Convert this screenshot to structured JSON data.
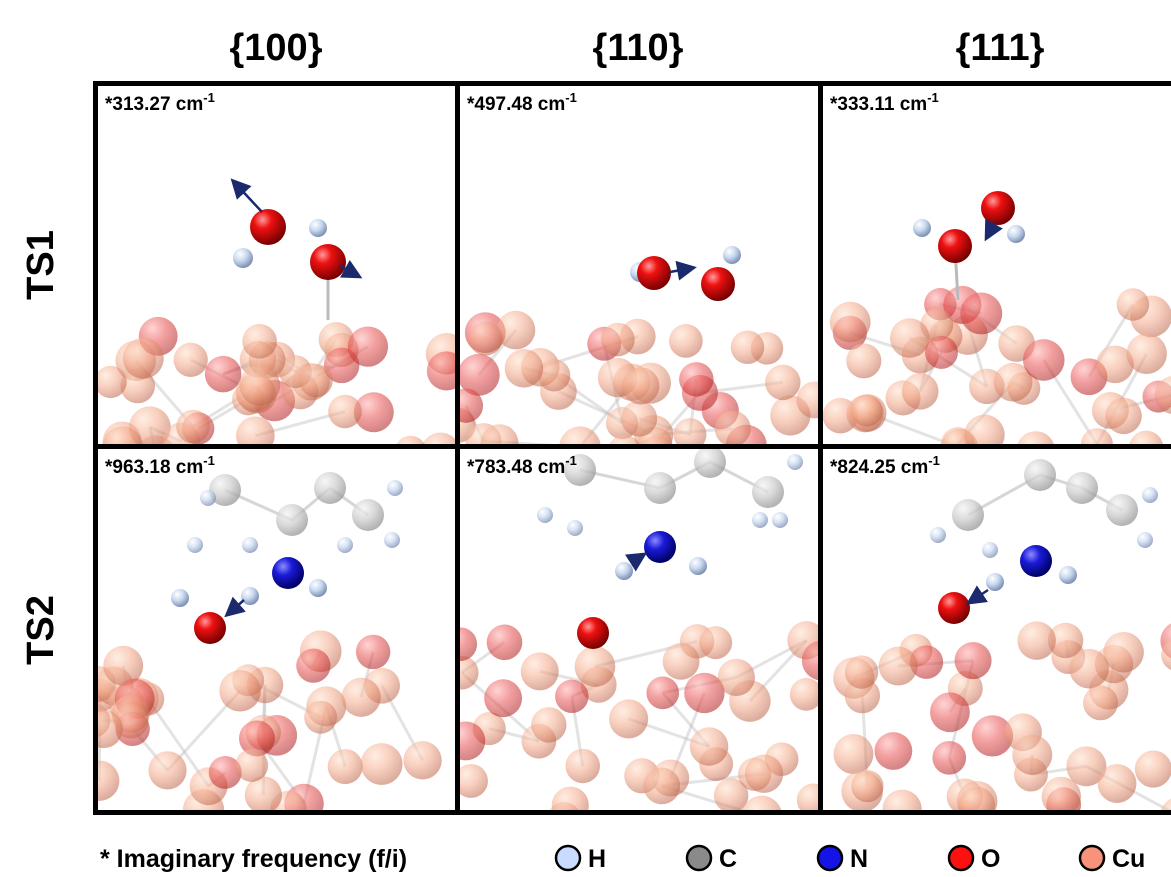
{
  "columns": [
    "{100}",
    "{110}",
    "{111}"
  ],
  "rows": [
    {
      "label": "TS1",
      "cells": [
        {
          "label": "*313.27 cm",
          "sup": "-1"
        },
        {
          "label": "*497.48 cm",
          "sup": "-1"
        },
        {
          "label": "*333.11 cm",
          "sup": "-1"
        }
      ]
    },
    {
      "label": "TS2",
      "cells": [
        {
          "label": "*963.18 cm",
          "sup": "-1"
        },
        {
          "label": "*783.48 cm",
          "sup": "-1"
        },
        {
          "label": "*824.25 cm",
          "sup": "-1"
        }
      ]
    }
  ],
  "legend": {
    "note": "* Imaginary frequency (f/i)",
    "items": [
      "H",
      "C",
      "N",
      "O",
      "Cu"
    ]
  }
}
